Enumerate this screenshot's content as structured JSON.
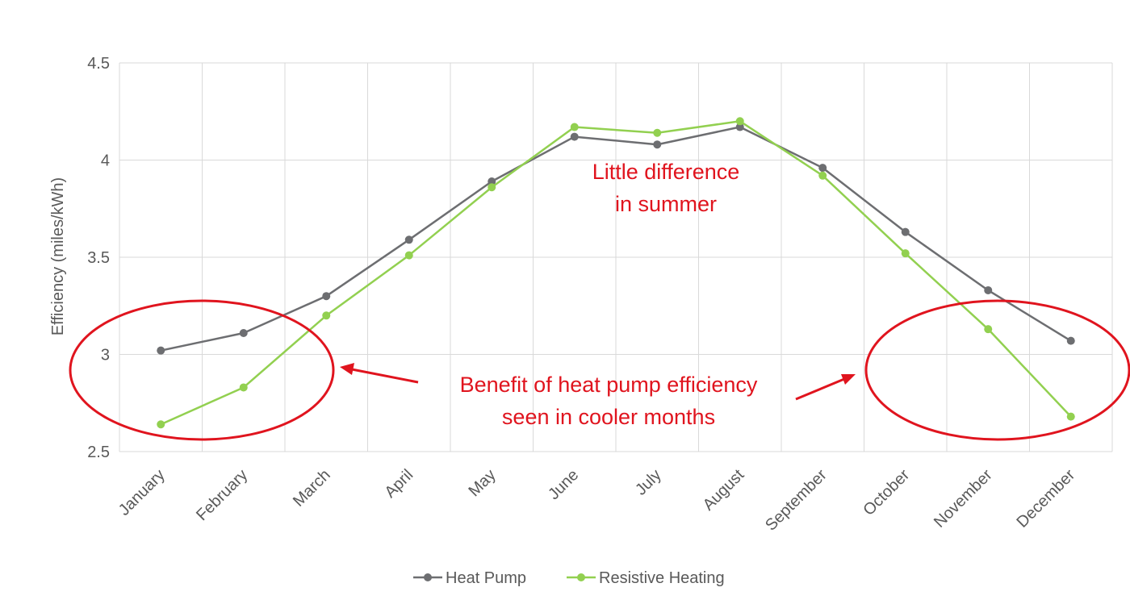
{
  "chart_data": {
    "type": "line",
    "title": "",
    "xlabel": "",
    "ylabel": "Efficiency (miles/kWh)",
    "ylim": [
      2.5,
      4.5
    ],
    "yticks": [
      "2.5",
      "3",
      "3.5",
      "4",
      "4.5"
    ],
    "grid": true,
    "legend_position": "bottom",
    "categories": [
      "January",
      "February",
      "March",
      "April",
      "May",
      "June",
      "July",
      "August",
      "September",
      "October",
      "November",
      "December"
    ],
    "series": [
      {
        "name": "Heat Pump",
        "color": "#6d6e71",
        "values": [
          3.02,
          3.11,
          3.3,
          3.59,
          3.89,
          4.12,
          4.08,
          4.17,
          3.96,
          3.63,
          3.33,
          3.07
        ]
      },
      {
        "name": "Resistive Heating",
        "color": "#92d050",
        "values": [
          2.64,
          2.83,
          3.2,
          3.51,
          3.86,
          4.17,
          4.14,
          4.2,
          3.92,
          3.52,
          3.13,
          2.68
        ]
      }
    ],
    "annotations": [
      {
        "lines": [
          "Little difference",
          "in summer"
        ],
        "color": "#e0141e"
      },
      {
        "lines": [
          "Benefit of heat pump efficiency",
          "seen in cooler months"
        ],
        "color": "#e0141e"
      }
    ]
  }
}
